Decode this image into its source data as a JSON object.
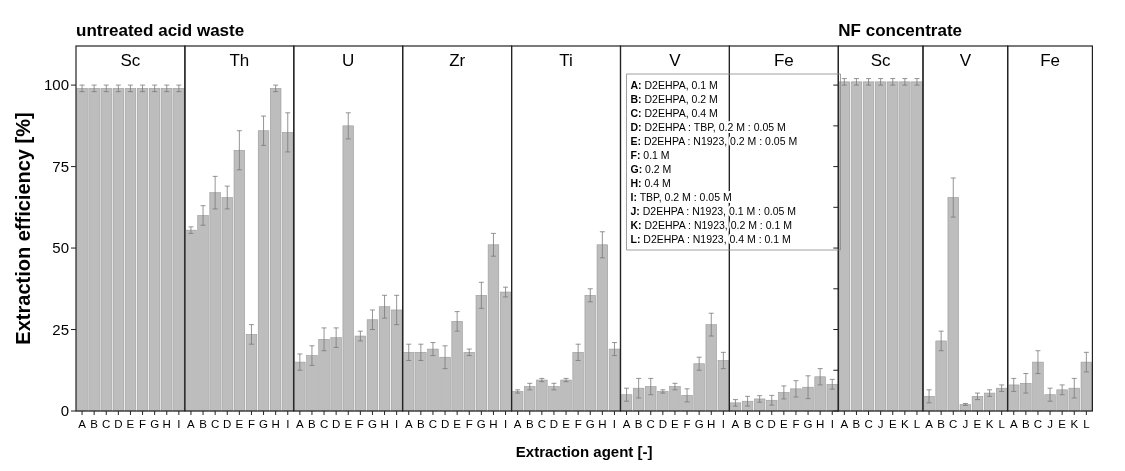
{
  "chart_data": [
    {
      "type": "bar",
      "title": "Sc",
      "ylabel": "Extraction efficiency [%]",
      "annotations": [
        "untreated acid waste"
      ],
      "categories": [
        "A",
        "B",
        "C",
        "D",
        "E",
        "F",
        "G",
        "H",
        "I"
      ],
      "values": [
        99,
        99,
        99,
        99,
        99,
        99,
        99,
        99,
        99
      ],
      "errors": [
        1,
        1,
        1,
        1,
        1,
        1,
        1,
        1,
        1
      ],
      "color": "#bdbdbd",
      "ylim": [
        0,
        112
      ],
      "yticks": [
        0,
        25,
        50,
        75,
        100
      ]
    },
    {
      "type": "bar",
      "title": "Th",
      "categories": [
        "A",
        "B",
        "C",
        "D",
        "E",
        "F",
        "G",
        "H",
        "I"
      ],
      "values": [
        55.5,
        60,
        67,
        65.5,
        80,
        23.5,
        86,
        99,
        85.5
      ],
      "errors": [
        1,
        3,
        5,
        3.5,
        6,
        3,
        4.5,
        1,
        6
      ],
      "color": "#bdbdbd",
      "ylim": [
        0,
        112
      ],
      "tick_labels": "x"
    },
    {
      "type": "bar",
      "title": "U",
      "categories": [
        "A",
        "B",
        "C",
        "D",
        "E",
        "F",
        "G",
        "H",
        "I"
      ],
      "values": [
        15,
        17,
        22,
        22.5,
        87.5,
        23,
        28,
        32,
        31
      ],
      "errors": [
        2.5,
        3,
        3.5,
        3,
        4,
        1.5,
        3,
        3.5,
        4.5
      ],
      "color": "#bdbdbd",
      "ylim": [
        0,
        112
      ],
      "tick_labels": "x"
    },
    {
      "type": "bar",
      "title": "Zr",
      "categories": [
        "A",
        "B",
        "C",
        "D",
        "E",
        "F",
        "G",
        "H",
        "I"
      ],
      "values": [
        18,
        18,
        19,
        16.5,
        27.5,
        18,
        35.5,
        51,
        36.5
      ],
      "errors": [
        2.5,
        2.5,
        2,
        3.5,
        3,
        1,
        4,
        3.5,
        1.5
      ],
      "color": "#bdbdbd",
      "ylim": [
        0,
        112
      ],
      "tick_labels": "x"
    },
    {
      "type": "bar",
      "title": "Ti",
      "xlabel": "Extraction agent [-]",
      "categories": [
        "A",
        "B",
        "C",
        "D",
        "E",
        "F",
        "G",
        "H",
        "I"
      ],
      "values": [
        6,
        7.5,
        9.5,
        7.5,
        9.5,
        18,
        35.5,
        51,
        19
      ],
      "errors": [
        0.5,
        1,
        0.5,
        1,
        0.5,
        2.5,
        2,
        4,
        2
      ],
      "color": "#bdbdbd",
      "ylim": [
        0,
        112
      ],
      "tick_labels": "x"
    },
    {
      "type": "bar",
      "title": "V",
      "annotations": [
        "A: D2EHPA, 0.1 M",
        "B: D2EHPA, 0.2 M",
        "C: D2EHPA, 0.4 M",
        "D: D2EHPA : TBP, 0.2 M : 0.05 M",
        "E: D2EHPA : N1923, 0.2 M : 0.05 M",
        "F: 0.1 M",
        "G: 0.2 M",
        "H: 0.4 M",
        "I: TBP, 0.2 M : 0.05 M",
        "J: D2EHPA : N1923, 0.1 M : 0.05 M",
        "K: D2EHPA : N1923, 0.2 M : 0.1 M",
        "L: D2EHPA : N1923, 0.4 M : 0.1 M"
      ],
      "categories": [
        "A",
        "B",
        "C",
        "D",
        "E",
        "F",
        "G",
        "H",
        "I"
      ],
      "values": [
        5,
        7,
        7.5,
        6,
        7.5,
        4.8,
        14.5,
        26.5,
        15.5
      ],
      "errors": [
        2,
        3,
        2.5,
        0.5,
        1,
        2,
        2,
        3.5,
        2.5
      ],
      "color": "#bdbdbd",
      "ylim": [
        0,
        112
      ],
      "tick_labels": "x"
    },
    {
      "type": "bar",
      "title": "Fe",
      "categories": [
        "A",
        "B",
        "C",
        "D",
        "E",
        "F",
        "G",
        "H",
        "I"
      ],
      "values": [
        2.5,
        3,
        3.7,
        3.3,
        5.7,
        6.8,
        7.3,
        10.5,
        8.2
      ],
      "errors": [
        1,
        1.5,
        1,
        1.5,
        2,
        2.5,
        3.5,
        2.5,
        1.5
      ],
      "color": "#bdbdbd",
      "ylim": [
        0,
        112
      ],
      "tick_labels": "x"
    },
    {
      "type": "bar",
      "title": "Sc",
      "annotations": [
        "NF concentrate"
      ],
      "categories": [
        "A",
        "B",
        "C",
        "J",
        "E",
        "K",
        "L"
      ],
      "values": [
        101,
        101,
        101,
        101,
        101,
        101,
        101
      ],
      "errors": [
        1,
        1,
        1,
        1,
        1,
        1,
        1
      ],
      "color": "#bdbdbd",
      "ylim": [
        0,
        112
      ],
      "yticks": [
        {
          "value": 0,
          "label": null
        },
        {
          "value": 12.5,
          "label": null
        },
        {
          "value": 25,
          "label": null
        },
        {
          "value": 37.5,
          "label": null
        },
        {
          "value": 50,
          "label": null
        },
        {
          "value": 62.5,
          "label": null
        },
        {
          "value": 75,
          "label": null
        },
        {
          "value": 87.5,
          "label": null
        },
        {
          "value": 100,
          "label": null
        }
      ],
      "tick_labels": "x"
    },
    {
      "type": "bar",
      "title": "V",
      "categories": [
        "A",
        "B",
        "C",
        "J",
        "E",
        "K",
        "L"
      ],
      "values": [
        4.5,
        21.5,
        65.5,
        2,
        4.5,
        5.5,
        7
      ],
      "errors": [
        2,
        3,
        6,
        0.3,
        1,
        1,
        1
      ],
      "color": "#bdbdbd",
      "ylim": [
        0,
        112
      ],
      "tick_labels": "x"
    },
    {
      "type": "bar",
      "title": "Fe",
      "categories": [
        "A",
        "B",
        "C",
        "J",
        "E",
        "K",
        "L"
      ],
      "values": [
        8,
        8.5,
        15,
        5,
        6.5,
        7,
        15
      ],
      "errors": [
        2,
        3,
        3.5,
        2,
        1.5,
        3,
        3
      ],
      "color": "#bdbdbd",
      "ylim": [
        0,
        112
      ],
      "tick_labels": "x"
    }
  ]
}
